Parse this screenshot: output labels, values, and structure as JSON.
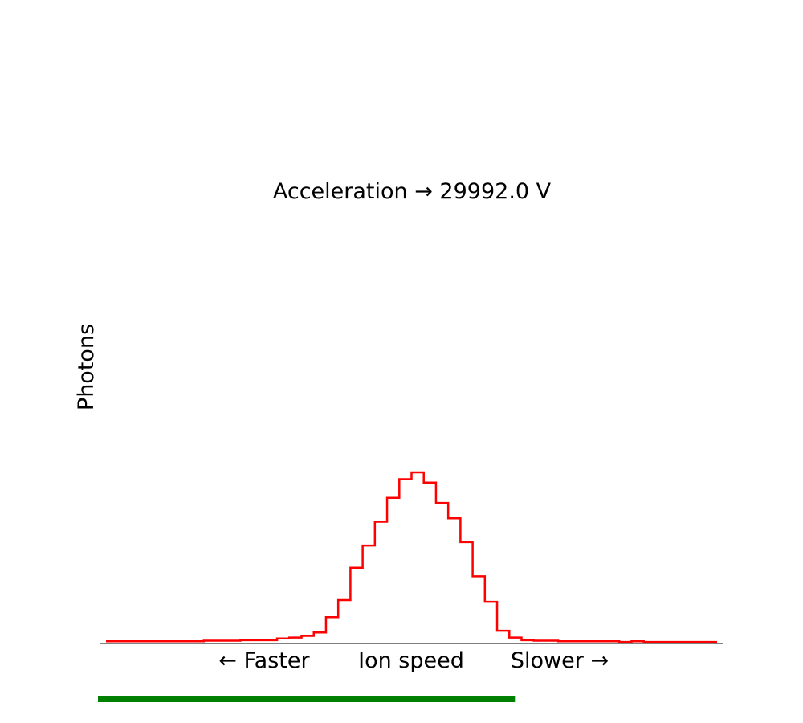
{
  "chart_data": {
    "type": "line",
    "step": true,
    "title": "Acceleration → 29992.0 V",
    "ylabel": "Photons",
    "xlabel_left": "← Faster",
    "xlabel_center": "Ion speed",
    "xlabel_right": "Slower →",
    "ylim": [
      0,
      1
    ],
    "grid": false,
    "y_ticks": "none",
    "series": [
      {
        "color": "#ff0000",
        "values": [
          0.008,
          0.008,
          0.008,
          0.008,
          0.008,
          0.008,
          0.008,
          0.008,
          0.012,
          0.012,
          0.012,
          0.015,
          0.015,
          0.015,
          0.025,
          0.03,
          0.04,
          0.06,
          0.15,
          0.25,
          0.44,
          0.57,
          0.71,
          0.85,
          0.96,
          1.0,
          0.94,
          0.82,
          0.73,
          0.59,
          0.39,
          0.24,
          0.07,
          0.03,
          0.015,
          0.012,
          0.012,
          0.008,
          0.008,
          0.008,
          0.008,
          0.008,
          0.004,
          0.008,
          0.004,
          0.004,
          0.004,
          0.004,
          0.004,
          0.004
        ]
      }
    ],
    "progress": {
      "color": "#008000",
      "fraction": 0.67
    }
  }
}
